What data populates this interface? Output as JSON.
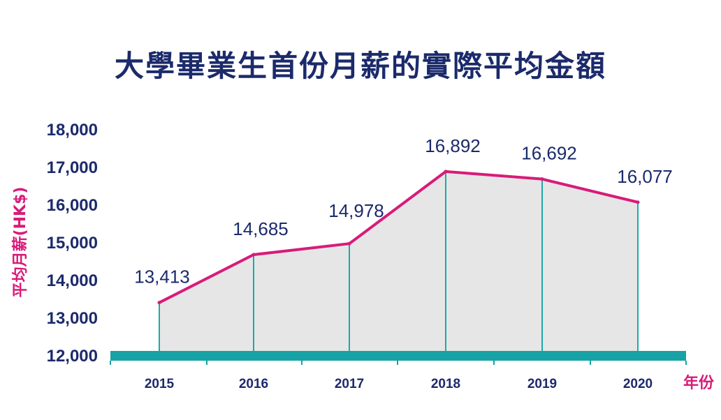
{
  "chart_data": {
    "type": "area",
    "title": "大學畢業生首份月薪的實際平均金額",
    "categories": [
      "2015",
      "2016",
      "2017",
      "2018",
      "2019",
      "2020"
    ],
    "values": [
      13413,
      14685,
      14978,
      16892,
      16692,
      16077
    ],
    "data_labels": [
      "13,413",
      "14,685",
      "14,978",
      "16,892",
      "16,692",
      "16,077"
    ],
    "xlabel": "年份",
    "ylabel": "平均月薪(HK$)",
    "ylim": [
      12000,
      18000
    ],
    "yticks": [
      12000,
      13000,
      14000,
      15000,
      16000,
      17000,
      18000
    ],
    "ytick_labels": [
      "12,000",
      "13,000",
      "14,000",
      "15,000",
      "16,000",
      "17,000",
      "18,000"
    ],
    "grid": false,
    "legend": "none",
    "colors": {
      "line": "#d81b7a",
      "fill": "#e6e6e6",
      "drop_lines": "#1fa8a8",
      "baseline": "#17a2a6",
      "text": "#1b2a6b",
      "axis_label": "#d81b7a"
    }
  }
}
